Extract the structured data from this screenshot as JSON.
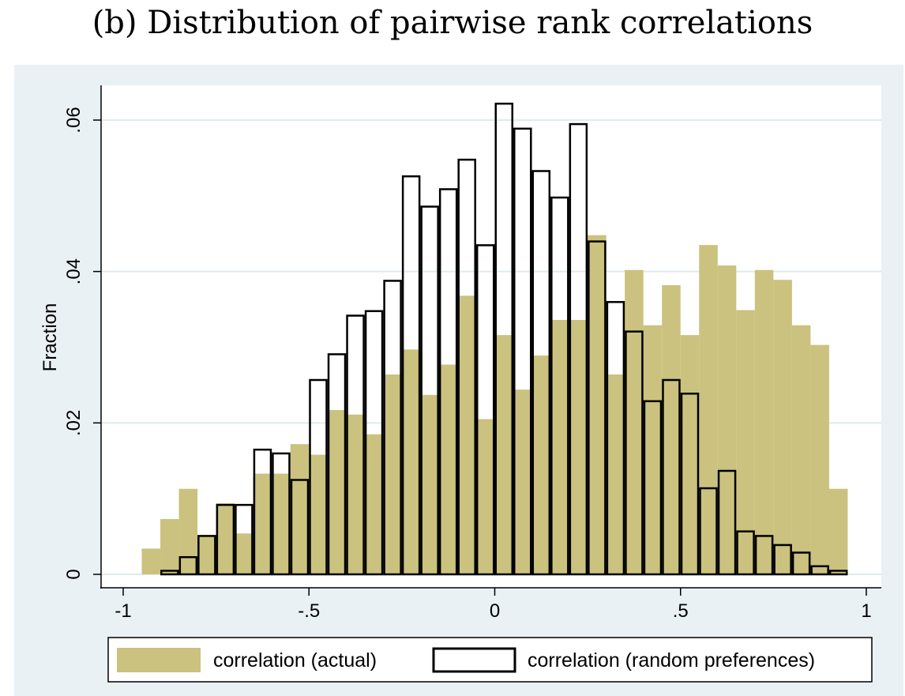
{
  "title": "(b) Distribution of pairwise rank correlations",
  "chart_data": {
    "type": "bar",
    "subtype": "overlaid-histogram",
    "ylabel": "Fraction",
    "xlabel": "",
    "xlim": [
      -1,
      1
    ],
    "ylim": [
      0,
      0.06
    ],
    "x_ticks": [
      {
        "value": -1,
        "label": "-1"
      },
      {
        "value": -0.5,
        "label": "-.5"
      },
      {
        "value": 0,
        "label": "0"
      },
      {
        "value": 0.5,
        "label": ".5"
      },
      {
        "value": 1,
        "label": "1"
      }
    ],
    "y_ticks": [
      {
        "value": 0,
        "label": "0"
      },
      {
        "value": 0.02,
        "label": ".02"
      },
      {
        "value": 0.04,
        "label": ".04"
      },
      {
        "value": 0.06,
        "label": ".06"
      }
    ],
    "grid": "horizontal",
    "legend_position": "bottom",
    "series": [
      {
        "name": "correlation (actual)",
        "style": "filled",
        "color": "#cac27e",
        "x_start": -0.95,
        "bin_width": 0.05,
        "values": [
          0.0034,
          0.0073,
          0.0113,
          0.0052,
          0.0094,
          0.0054,
          0.0133,
          0.0133,
          0.0172,
          0.0158,
          0.0217,
          0.0211,
          0.0185,
          0.0264,
          0.0297,
          0.0237,
          0.0277,
          0.0368,
          0.0205,
          0.0316,
          0.0244,
          0.0289,
          0.0336,
          0.0336,
          0.0448,
          0.0264,
          0.0402,
          0.0329,
          0.0382,
          0.0316,
          0.0435,
          0.0408,
          0.0349,
          0.0402,
          0.0389,
          0.0329,
          0.0303,
          0.0113
        ]
      },
      {
        "name": "correlation (random preferences)",
        "style": "outline",
        "color": "#000000",
        "x_start": -0.9,
        "bin_width": 0.05,
        "values": [
          0.0006,
          0.0024,
          0.0052,
          0.0093,
          0.0093,
          0.0166,
          0.0161,
          0.0126,
          0.0258,
          0.0292,
          0.0343,
          0.0349,
          0.0389,
          0.0527,
          0.0487,
          0.051,
          0.0549,
          0.0436,
          0.0623,
          0.059,
          0.0534,
          0.0499,
          0.0596,
          0.0441,
          0.0361,
          0.0322,
          0.023,
          0.0258,
          0.024,
          0.0115,
          0.0138,
          0.0058,
          0.0052,
          0.004,
          0.003,
          0.0012,
          0.0006
        ]
      }
    ]
  },
  "colors": {
    "outer_background": "#eaf1f4",
    "plot_background": "#ffffff",
    "grid": "#e1eaee",
    "actual_fill": "#cac27e"
  }
}
